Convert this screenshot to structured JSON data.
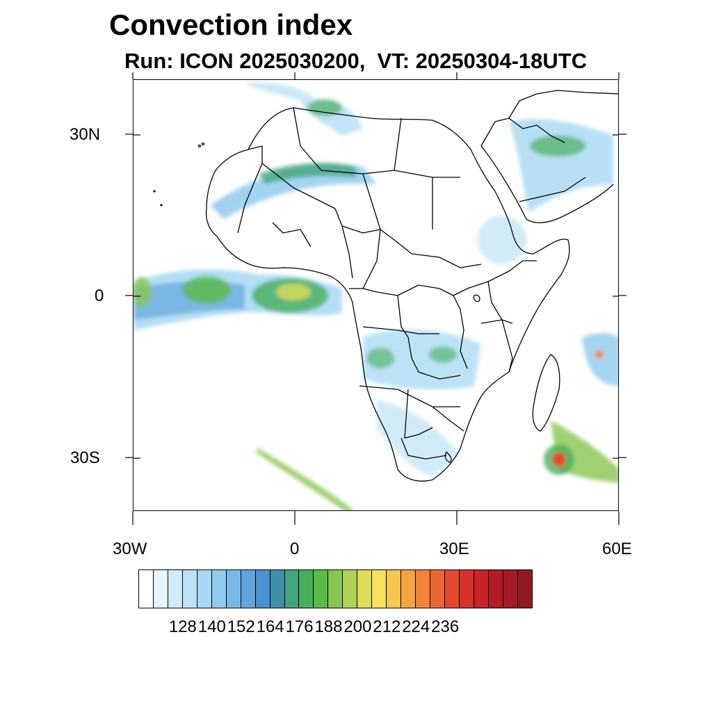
{
  "title": "Convection index",
  "subtitle": "Run: ICON 2025030200,  VT: 20250304-18UTC",
  "map": {
    "projection": "cylindrical equidistant",
    "lon_range": [
      -30,
      60
    ],
    "lat_range": [
      -40,
      40
    ],
    "lon_ticks": [
      {
        "value": -30,
        "label": "30W"
      },
      {
        "value": 0,
        "label": "0"
      },
      {
        "value": 30,
        "label": "30E"
      },
      {
        "value": 60,
        "label": "60E"
      }
    ],
    "lat_ticks": [
      {
        "value": 30,
        "label": "30N"
      },
      {
        "value": 0,
        "label": "0"
      },
      {
        "value": -30,
        "label": "30S"
      }
    ],
    "region": "Africa"
  },
  "colorbar": {
    "colors": [
      "#ffffff",
      "#e8f4fc",
      "#d2ebf9",
      "#bde2f6",
      "#a6d8f3",
      "#90cbee",
      "#7ab8e6",
      "#62a5dc",
      "#4a91d2",
      "#3f8fa8",
      "#44a47e",
      "#48ae5c",
      "#58bb48",
      "#87c650",
      "#b3d154",
      "#dcde58",
      "#f4e35b",
      "#f8c74f",
      "#f5a444",
      "#f2843a",
      "#ec6633",
      "#e14a2e",
      "#d8322c",
      "#c8222a",
      "#b51b27",
      "#a41a24",
      "#921922"
    ],
    "tick_labels": [
      "128",
      "140",
      "152",
      "164",
      "176",
      "188",
      "200",
      "212",
      "224",
      "236"
    ]
  }
}
